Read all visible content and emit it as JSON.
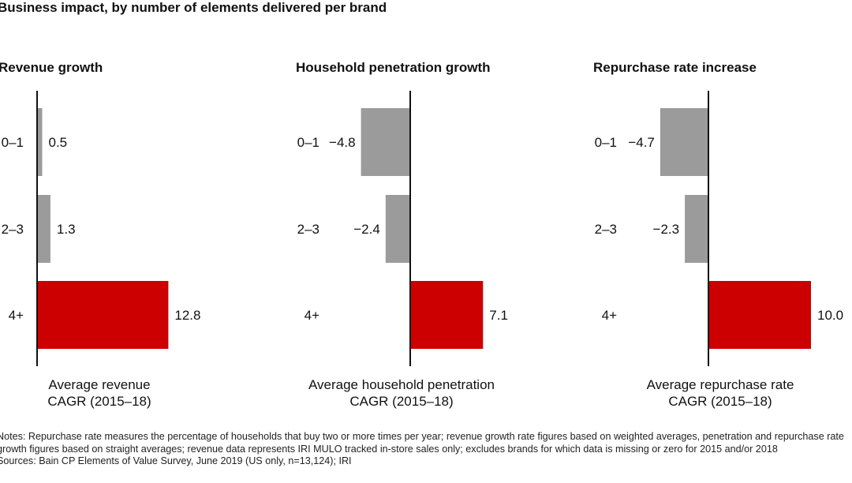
{
  "chart_data": [
    {
      "type": "bar",
      "orientation": "horizontal",
      "title": "Revenue growth",
      "xlabel": "Average revenue CAGR (2015–18)",
      "xlabel_lines": [
        "Average revenue",
        "CAGR (2015–18)"
      ],
      "categories": [
        "0–1",
        "2–3",
        "4+"
      ],
      "values": [
        0.5,
        1.3,
        12.8
      ],
      "value_labels": [
        "0.5",
        "1.3",
        "12.8"
      ],
      "highlight": [
        false,
        false,
        true
      ]
    },
    {
      "type": "bar",
      "orientation": "horizontal",
      "title": "Household penetration growth",
      "xlabel": "Average household penetration CAGR (2015–18)",
      "xlabel_lines": [
        "Average household penetration",
        "CAGR (2015–18)"
      ],
      "categories": [
        "0–1",
        "2–3",
        "4+"
      ],
      "values": [
        -4.8,
        -2.4,
        7.1
      ],
      "value_labels": [
        "−4.8",
        "−2.4",
        "7.1"
      ],
      "highlight": [
        false,
        false,
        true
      ]
    },
    {
      "type": "bar",
      "orientation": "horizontal",
      "title": "Repurchase rate increase",
      "xlabel": "Average repurchase rate CAGR (2015–18)",
      "xlabel_lines": [
        "Average repurchase rate",
        "CAGR (2015–18)"
      ],
      "categories": [
        "0–1",
        "2–3",
        "4+"
      ],
      "values": [
        -4.7,
        -2.3,
        10.0
      ],
      "value_labels": [
        "−4.7",
        "−2.3",
        "10.0"
      ],
      "highlight": [
        false,
        false,
        true
      ]
    }
  ],
  "title": "Business impact, by number of elements delivered per brand",
  "colors": {
    "default_bar": "#9b9b9b",
    "highlight_bar": "#cc0000",
    "axis": "#111111"
  },
  "notes": "Notes: Repurchase rate measures the percentage of households that buy two or more times per year; revenue growth rate figures based on weighted averages, penetration and repurchase rate growth figures based on straight averages; revenue data represents IRI MULO tracked in-store sales only; excludes brands for which data is missing or zero for 2015 and/or 2018",
  "sources": "Sources: Bain CP Elements of Value Survey, June 2019 (US only, n=13,124); IRI"
}
